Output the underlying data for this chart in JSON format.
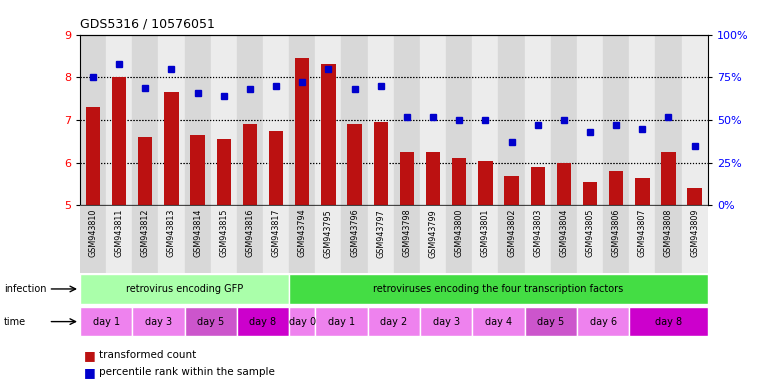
{
  "title": "GDS5316 / 10576051",
  "samples": [
    "GSM943810",
    "GSM943811",
    "GSM943812",
    "GSM943813",
    "GSM943814",
    "GSM943815",
    "GSM943816",
    "GSM943817",
    "GSM943794",
    "GSM943795",
    "GSM943796",
    "GSM943797",
    "GSM943798",
    "GSM943799",
    "GSM943800",
    "GSM943801",
    "GSM943802",
    "GSM943803",
    "GSM943804",
    "GSM943805",
    "GSM943806",
    "GSM943807",
    "GSM943808",
    "GSM943809"
  ],
  "red_values": [
    7.3,
    8.0,
    6.6,
    7.65,
    6.65,
    6.55,
    6.9,
    6.75,
    8.45,
    8.3,
    6.9,
    6.95,
    6.25,
    6.25,
    6.1,
    6.05,
    5.7,
    5.9,
    6.0,
    5.55,
    5.8,
    5.65,
    6.25,
    5.4
  ],
  "blue_values": [
    75,
    83,
    69,
    80,
    66,
    64,
    68,
    70,
    72,
    80,
    68,
    70,
    52,
    52,
    50,
    50,
    37,
    47,
    50,
    43,
    47,
    45,
    52,
    35
  ],
  "ylim_left": [
    5,
    9
  ],
  "ylim_right": [
    0,
    100
  ],
  "yticks_left": [
    5,
    6,
    7,
    8,
    9
  ],
  "yticks_right": [
    0,
    25,
    50,
    75,
    100
  ],
  "ytick_labels_right": [
    "0%",
    "25%",
    "50%",
    "75%",
    "100%"
  ],
  "infection_groups": [
    {
      "label": "retrovirus encoding GFP",
      "start": 0,
      "end": 8,
      "color": "#aaffaa"
    },
    {
      "label": "retroviruses encoding the four transcription factors",
      "start": 8,
      "end": 24,
      "color": "#44dd44"
    }
  ],
  "time_groups": [
    {
      "label": "day 1",
      "start": 0,
      "end": 2,
      "color": "#ee82ee"
    },
    {
      "label": "day 3",
      "start": 2,
      "end": 4,
      "color": "#ee82ee"
    },
    {
      "label": "day 5",
      "start": 4,
      "end": 6,
      "color": "#cc55cc"
    },
    {
      "label": "day 8",
      "start": 6,
      "end": 8,
      "color": "#cc00cc"
    },
    {
      "label": "day 0",
      "start": 8,
      "end": 9,
      "color": "#ee82ee"
    },
    {
      "label": "day 1",
      "start": 9,
      "end": 11,
      "color": "#ee82ee"
    },
    {
      "label": "day 2",
      "start": 11,
      "end": 13,
      "color": "#ee82ee"
    },
    {
      "label": "day 3",
      "start": 13,
      "end": 15,
      "color": "#ee82ee"
    },
    {
      "label": "day 4",
      "start": 15,
      "end": 17,
      "color": "#ee82ee"
    },
    {
      "label": "day 5",
      "start": 17,
      "end": 19,
      "color": "#cc55cc"
    },
    {
      "label": "day 6",
      "start": 19,
      "end": 21,
      "color": "#ee82ee"
    },
    {
      "label": "day 8",
      "start": 21,
      "end": 24,
      "color": "#cc00cc"
    }
  ],
  "bar_color": "#bb1111",
  "dot_color": "#0000cc",
  "label_transformed": "transformed count",
  "label_percentile": "percentile rank within the sample",
  "infection_label": "infection",
  "time_label": "time"
}
